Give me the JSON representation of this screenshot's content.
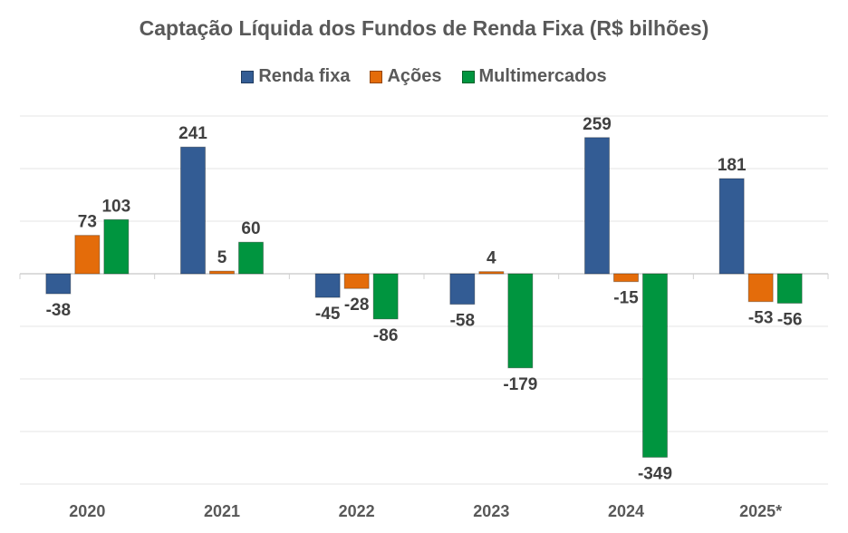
{
  "chart_data": {
    "type": "bar",
    "title": "Captação Líquida dos Fundos de Renda Fixa (R$ bilhões)",
    "xlabel": "",
    "ylabel": "",
    "categories": [
      "2020",
      "2021",
      "2022",
      "2023",
      "2024",
      "2025*"
    ],
    "series": [
      {
        "name": "Renda fixa",
        "color": "#335C94",
        "values": [
          -38,
          241,
          -45,
          -58,
          259,
          181
        ]
      },
      {
        "name": "Ações",
        "color": "#E46C0A",
        "values": [
          73,
          5,
          -28,
          4,
          -15,
          -53
        ]
      },
      {
        "name": "Multimercados",
        "color": "#00953F",
        "values": [
          103,
          60,
          -86,
          -179,
          -349,
          -56
        ]
      }
    ],
    "ylim": [
      -400,
      300
    ],
    "ytick_step": 100,
    "y_tick_labels_visible": false,
    "grid": true,
    "legend_position": "top",
    "data_labels": true
  }
}
